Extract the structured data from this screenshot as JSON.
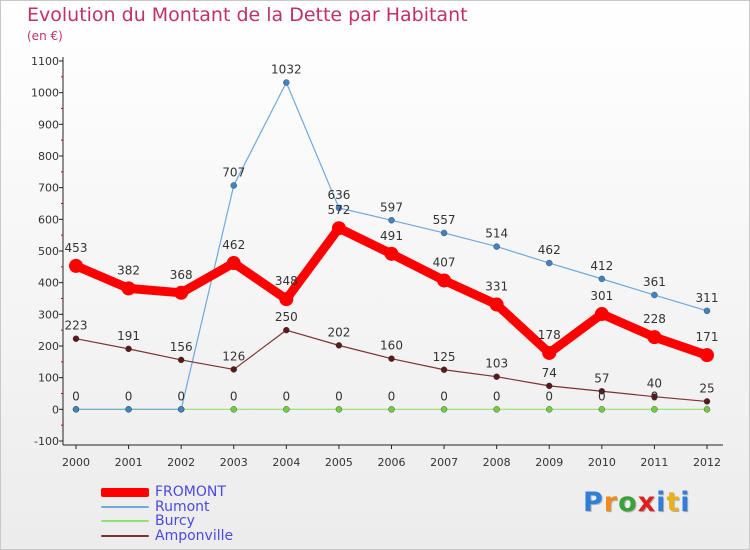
{
  "title": "Evolution du Montant de la Dette par Habitant",
  "subtitle": "(en €)",
  "chart_data": {
    "type": "line",
    "x": [
      "2000",
      "2001",
      "2002",
      "2003",
      "2004",
      "2005",
      "2006",
      "2007",
      "2008",
      "2009",
      "2010",
      "2011",
      "2012"
    ],
    "ylim": [
      -100,
      1100
    ],
    "yticks": [
      -100,
      0,
      100,
      200,
      300,
      400,
      500,
      600,
      700,
      800,
      900,
      1000,
      1100
    ],
    "grid": false,
    "legend_position": "bottom-left",
    "series": [
      {
        "name": "FROMONT",
        "color": "#ff0000",
        "values": [
          453,
          382,
          368,
          462,
          348,
          572,
          491,
          407,
          331,
          178,
          301,
          228,
          171
        ],
        "labels": [
          "453",
          "382",
          "368",
          "462",
          "348",
          "572",
          "491",
          "407",
          "331",
          "178",
          "301",
          "228",
          "171"
        ],
        "width": "thick"
      },
      {
        "name": "Rumont",
        "color": "#6fa8dc",
        "marker": "#3d85c6",
        "values": [
          0,
          0,
          0,
          707,
          1032,
          636,
          597,
          557,
          514,
          462,
          412,
          361,
          311
        ],
        "labels": [
          "",
          "",
          "",
          "707",
          "1032",
          "636",
          "597",
          "557",
          "514",
          "462",
          "412",
          "361",
          "311"
        ],
        "width": "thin"
      },
      {
        "name": "Burcy",
        "color": "#93e075",
        "marker": "#6fcf3f",
        "values": [
          0,
          0,
          0,
          0,
          0,
          0,
          0,
          0,
          0,
          0,
          0,
          0,
          0
        ],
        "labels": [
          "0",
          "0",
          "0",
          "0",
          "0",
          "0",
          "0",
          "0",
          "0",
          "0",
          "0",
          "0",
          ""
        ],
        "width": "thin"
      },
      {
        "name": "Amponville",
        "color": "#7a3333",
        "marker": "#5a1a1a",
        "values": [
          223,
          191,
          156,
          126,
          250,
          202,
          160,
          125,
          103,
          74,
          57,
          40,
          25
        ],
        "labels": [
          "223",
          "191",
          "156",
          "126",
          "250",
          "202",
          "160",
          "125",
          "103",
          "74",
          "57",
          "40",
          "25"
        ],
        "width": "thin"
      }
    ]
  },
  "logo": {
    "letters": [
      "P",
      "r",
      "o",
      "x",
      "i",
      "t",
      "i"
    ],
    "colors": [
      "#2f7fd8",
      "#f08a1c",
      "#3aa23a",
      "#e02020",
      "#2f7fd8",
      "#e9b21a",
      "#2f7fd8"
    ]
  }
}
